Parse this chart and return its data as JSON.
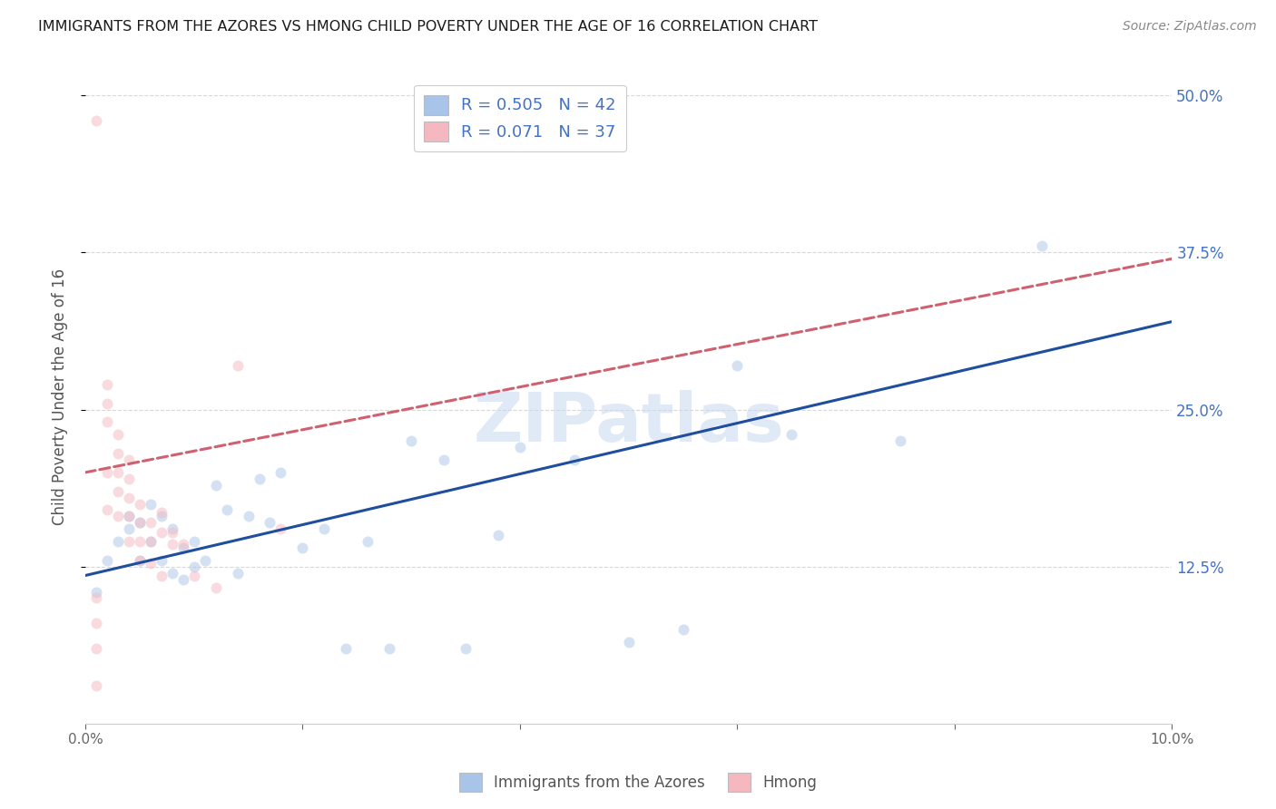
{
  "title": "IMMIGRANTS FROM THE AZORES VS HMONG CHILD POVERTY UNDER THE AGE OF 16 CORRELATION CHART",
  "source": "Source: ZipAtlas.com",
  "ylabel": "Child Poverty Under the Age of 16",
  "x_min": 0.0,
  "x_max": 0.1,
  "y_min": 0.0,
  "y_max": 0.52,
  "x_ticks": [
    0.0,
    0.02,
    0.04,
    0.06,
    0.08,
    0.1
  ],
  "y_ticks_right": [
    0.125,
    0.25,
    0.375,
    0.5
  ],
  "y_tick_labels_right": [
    "12.5%",
    "25.0%",
    "37.5%",
    "50.0%"
  ],
  "blue_R": 0.505,
  "blue_N": 42,
  "pink_R": 0.071,
  "pink_N": 37,
  "blue_color": "#a8c4e8",
  "pink_color": "#f5b8c0",
  "blue_line_color": "#1f4e9e",
  "pink_line_color": "#d06070",
  "legend_label_blue": "Immigrants from the Azores",
  "legend_label_pink": "Hmong",
  "blue_scatter_x": [
    0.001,
    0.002,
    0.003,
    0.004,
    0.004,
    0.005,
    0.005,
    0.006,
    0.006,
    0.007,
    0.007,
    0.008,
    0.008,
    0.009,
    0.009,
    0.01,
    0.01,
    0.011,
    0.012,
    0.013,
    0.014,
    0.015,
    0.016,
    0.017,
    0.018,
    0.02,
    0.022,
    0.024,
    0.026,
    0.028,
    0.03,
    0.033,
    0.035,
    0.038,
    0.04,
    0.045,
    0.05,
    0.055,
    0.06,
    0.065,
    0.075,
    0.088
  ],
  "blue_scatter_y": [
    0.105,
    0.13,
    0.145,
    0.155,
    0.165,
    0.16,
    0.13,
    0.175,
    0.145,
    0.165,
    0.13,
    0.155,
    0.12,
    0.14,
    0.115,
    0.145,
    0.125,
    0.13,
    0.19,
    0.17,
    0.12,
    0.165,
    0.195,
    0.16,
    0.2,
    0.14,
    0.155,
    0.06,
    0.145,
    0.06,
    0.225,
    0.21,
    0.06,
    0.15,
    0.22,
    0.21,
    0.065,
    0.075,
    0.285,
    0.23,
    0.225,
    0.38
  ],
  "pink_scatter_x": [
    0.001,
    0.001,
    0.001,
    0.001,
    0.001,
    0.002,
    0.002,
    0.002,
    0.002,
    0.002,
    0.003,
    0.003,
    0.003,
    0.003,
    0.003,
    0.004,
    0.004,
    0.004,
    0.004,
    0.004,
    0.005,
    0.005,
    0.005,
    0.005,
    0.006,
    0.006,
    0.006,
    0.007,
    0.007,
    0.007,
    0.008,
    0.008,
    0.009,
    0.01,
    0.012,
    0.014,
    0.018
  ],
  "pink_scatter_y": [
    0.48,
    0.1,
    0.08,
    0.06,
    0.03,
    0.27,
    0.255,
    0.24,
    0.2,
    0.17,
    0.23,
    0.215,
    0.2,
    0.185,
    0.165,
    0.21,
    0.195,
    0.18,
    0.165,
    0.145,
    0.175,
    0.16,
    0.145,
    0.13,
    0.16,
    0.145,
    0.128,
    0.168,
    0.152,
    0.118,
    0.152,
    0.143,
    0.143,
    0.118,
    0.108,
    0.285,
    0.155
  ],
  "blue_line_x0": 0.0,
  "blue_line_y0": 0.118,
  "blue_line_x1": 0.1,
  "blue_line_y1": 0.32,
  "pink_line_x0": 0.0,
  "pink_line_y0": 0.2,
  "pink_line_x1": 0.028,
  "pink_line_y1": 0.222,
  "background_color": "#ffffff",
  "grid_color": "#d8d8d8",
  "title_color": "#1a1a1a",
  "axis_label_color": "#555555",
  "right_axis_color": "#4472c4",
  "dot_size": 75,
  "dot_alpha": 0.5,
  "line_width": 2.2
}
